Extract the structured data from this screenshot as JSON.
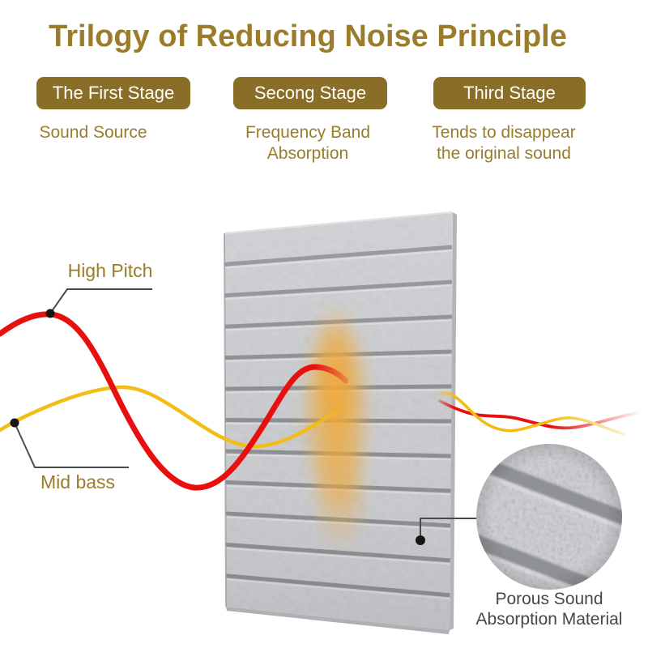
{
  "title": "Trilogy of Reducing Noise Principle",
  "stages": [
    {
      "badge": "The First Stage",
      "description": "Sound Source"
    },
    {
      "badge": "Secong Stage",
      "description": "Frequency Band\nAbsorption"
    },
    {
      "badge": "Third Stage",
      "description": "Tends to disappear\nthe original sound"
    }
  ],
  "wave_labels": {
    "high_pitch": "High Pitch",
    "mid_bass": "Mid bass"
  },
  "detail_caption": "Porous Sound\nAbsorption Material",
  "panel": {
    "description": "gray felt acoustic panel with horizontal grooves",
    "groove_count": 11
  },
  "colors": {
    "gold_text": "#9a7c2b",
    "badge_bg": "#8a6d26",
    "badge_text": "#ffffff",
    "red_wave": "#e8100e",
    "yellow_wave": "#f2bd16",
    "callout_line": "#4a4a4a",
    "caption_text": "#474747",
    "panel_base": "#cdcfd3",
    "panel_groove": "#7e8084",
    "absorption_glow": "#f0a837"
  }
}
